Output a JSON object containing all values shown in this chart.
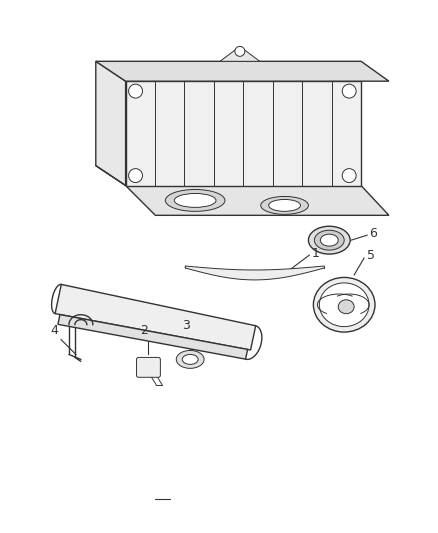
{
  "bg_color": "#ffffff",
  "line_color": "#333333",
  "label_color": "#222222",
  "figsize": [
    4.38,
    5.33
  ],
  "dpi": 100
}
